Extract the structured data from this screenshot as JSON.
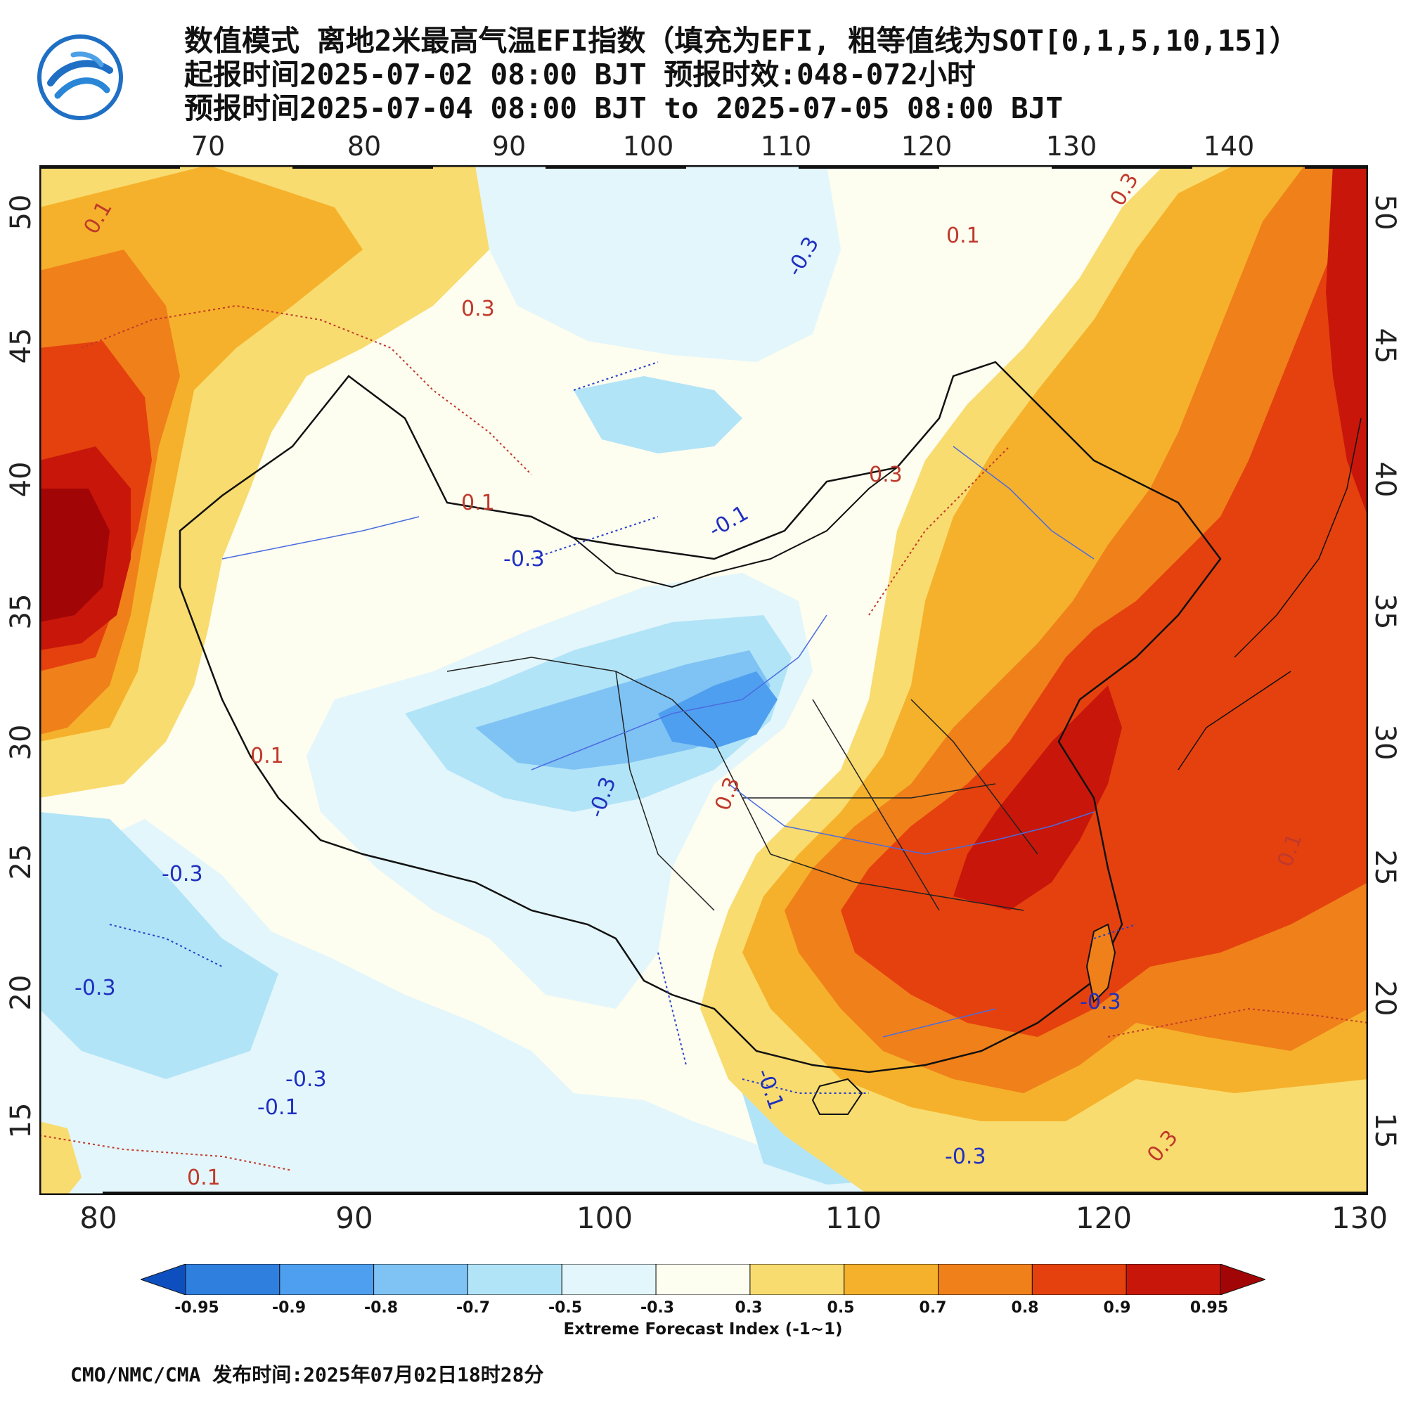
{
  "header": {
    "title_line1": "数值模式 离地2米最高气温EFI指数（填充为EFI, 粗等值线为SOT[0,1,5,10,15]）",
    "title_line2": "起报时间2025-07-02 08:00 BJT 预报时效:048-072小时",
    "title_line3": "预报时间2025-07-04 08:00 BJT to 2025-07-05 08:00 BJT"
  },
  "axes": {
    "top_lon_labels": [
      "70",
      "80",
      "90",
      "100",
      "110",
      "120",
      "130",
      "140"
    ],
    "bottom_lon_labels": [
      "80",
      "90",
      "100",
      "110",
      "120",
      "130"
    ],
    "left_lat_labels": [
      "50",
      "45",
      "40",
      "35",
      "30",
      "25",
      "20",
      "15"
    ],
    "right_lat_labels": [
      "50",
      "45",
      "40",
      "35",
      "30",
      "25",
      "20",
      "15"
    ]
  },
  "contour_labels": {
    "red": [
      "0.1",
      "0.3",
      "0.1",
      "0.3",
      "0.1",
      "0.3",
      "0.1",
      "0.3",
      "0.1",
      "0.3",
      "0.1"
    ],
    "blue": [
      "-0.3",
      "-0.3",
      "-0.3",
      "-0.3",
      "-0.3",
      "-0.1",
      "-0.3",
      "-0.3",
      "-0.1",
      "-0.3",
      "-0.1"
    ]
  },
  "colorbar": {
    "title": "Extreme Forecast Index (-1~1)",
    "tick_labels": [
      "-0.95",
      "-0.9",
      "-0.8",
      "-0.7",
      "-0.5",
      "-0.3",
      "0.3",
      "0.5",
      "0.7",
      "0.8",
      "0.9",
      "0.95"
    ],
    "colors": [
      "#0e4fbf",
      "#2f7fde",
      "#4f9ff0",
      "#7fc3f4",
      "#b2e4f7",
      "#e3f6fb",
      "#fdfdf0",
      "#f9dc6f",
      "#f5b12b",
      "#f0801a",
      "#e5410e",
      "#c8160a",
      "#a20505"
    ]
  },
  "footer": {
    "agency": "CMO/NMC/CMA",
    "release_time": "发布时间:2025年07月02日18时28分"
  }
}
